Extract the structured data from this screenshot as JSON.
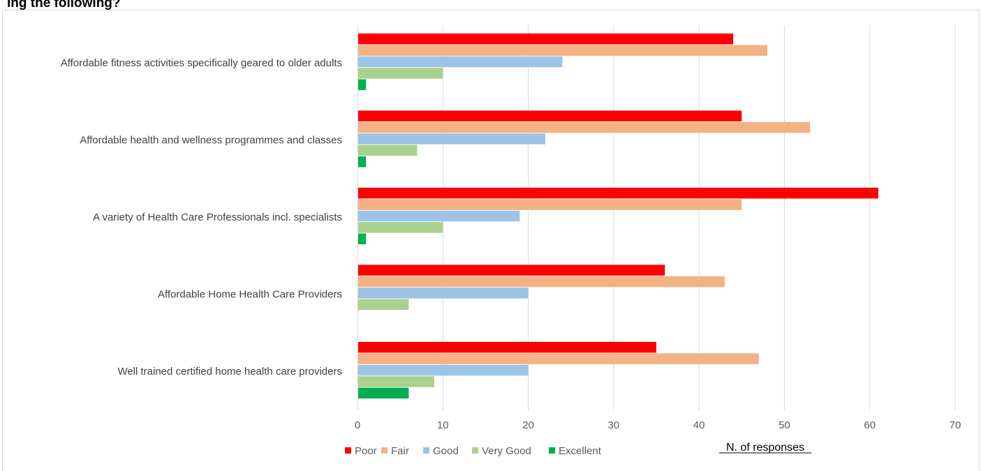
{
  "chart_data": {
    "type": "bar",
    "orientation": "horizontal",
    "title": "ing the following?",
    "xlabel": "N. of responses",
    "xlim": [
      0,
      70
    ],
    "xticks": [
      0,
      10,
      20,
      30,
      40,
      50,
      60,
      70
    ],
    "grid": true,
    "legend_position": "bottom",
    "categories": [
      "Affordable fitness activities specifically geared to older adults",
      "Affordable health and wellness programmes and classes",
      "A variety of Health Care Professionals incl. specialists",
      "Affordable Home Health Care Providers",
      "Well trained certified home health care providers"
    ],
    "series": [
      {
        "name": "Poor",
        "color": "#ff0000",
        "values": [
          44,
          45,
          61,
          36,
          35
        ]
      },
      {
        "name": "Fair",
        "color": "#f4b183",
        "values": [
          48,
          53,
          45,
          43,
          47
        ]
      },
      {
        "name": "Good",
        "color": "#9dc3e6",
        "values": [
          24,
          22,
          19,
          20,
          20
        ]
      },
      {
        "name": "Very Good",
        "color": "#a9d18e",
        "values": [
          10,
          7,
          10,
          6,
          9
        ]
      },
      {
        "name": "Excellent",
        "color": "#00b050",
        "values": [
          1,
          1,
          1,
          0,
          6
        ]
      }
    ]
  }
}
